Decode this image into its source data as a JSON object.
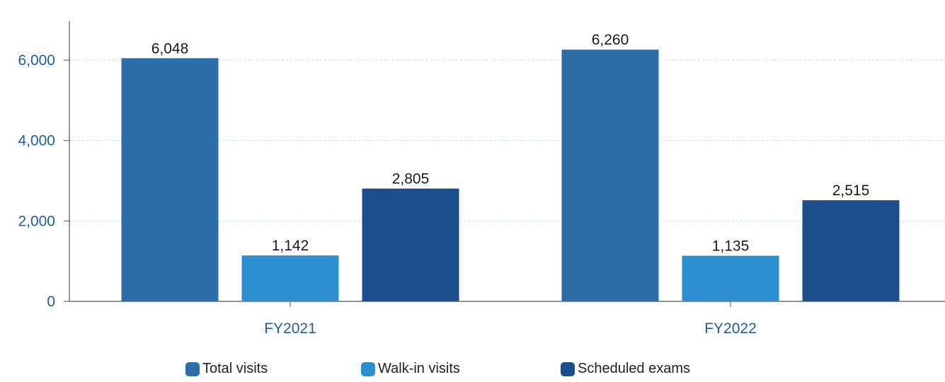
{
  "chart_data": {
    "type": "bar",
    "title": "",
    "xlabel": "",
    "ylabel": "",
    "categories": [
      "FY2021",
      "FY2022"
    ],
    "series": [
      {
        "name": "Total visits",
        "values": [
          6048,
          6260
        ],
        "labels": [
          "6,048",
          "6,260"
        ],
        "color": "#2C6DA7"
      },
      {
        "name": "Walk-in visits",
        "values": [
          1142,
          1135
        ],
        "labels": [
          "1,142",
          "1,135"
        ],
        "color": "#2E8FD0"
      },
      {
        "name": "Scheduled exams",
        "values": [
          2805,
          2515
        ],
        "labels": [
          "2,805",
          "2,515"
        ],
        "color": "#1D4E8C"
      }
    ],
    "ylim": [
      0,
      7000
    ],
    "y_ticks": [
      0,
      2000,
      4000,
      6000
    ],
    "y_tick_labels": [
      "0",
      "2,000",
      "4,000",
      "6,000"
    ],
    "grid": true,
    "legend_position": "bottom",
    "axis_color": "#1F5E9C"
  }
}
